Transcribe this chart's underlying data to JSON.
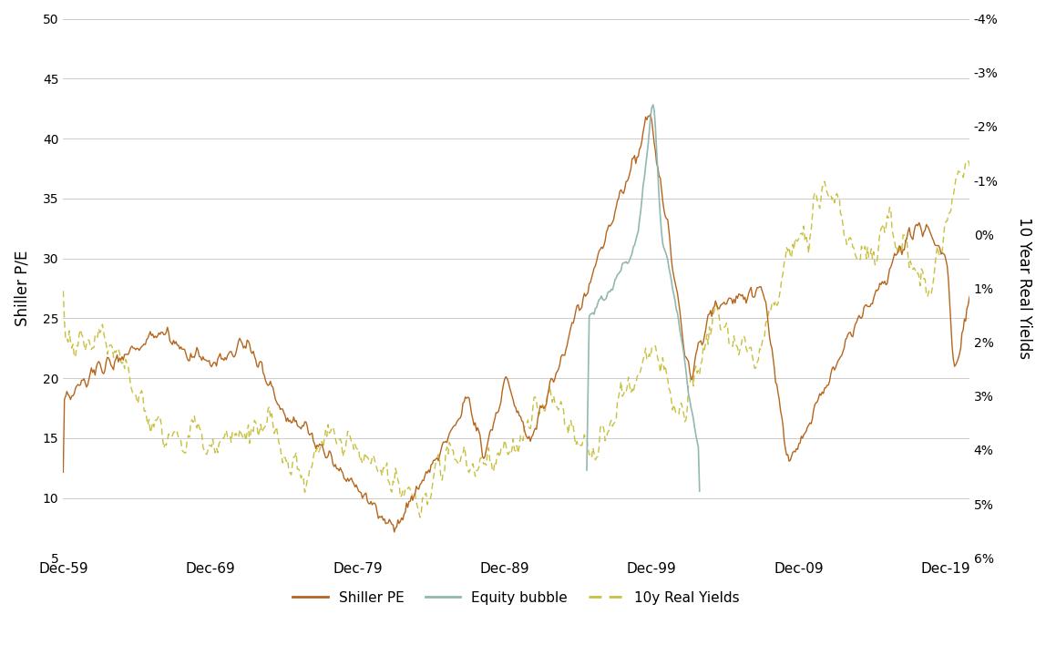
{
  "ylabel_left": "Shiller P/E",
  "ylabel_right": "10 Year Real Yields",
  "ylim_left": [
    5,
    50
  ],
  "yticks_left": [
    5,
    10,
    15,
    20,
    25,
    30,
    35,
    40,
    45,
    50
  ],
  "yticks_right_pct": [
    6,
    5,
    4,
    3,
    2,
    1,
    0,
    -1,
    -2,
    -3,
    -4
  ],
  "xtick_labels": [
    "Dec-59",
    "Dec-69",
    "Dec-79",
    "Dec-89",
    "Dec-99",
    "Dec-09",
    "Dec-19"
  ],
  "color_shiller": "#B5651D",
  "color_bubble": "#92B8B1",
  "color_yields": "#C8C040",
  "background": "#FFFFFF",
  "grid_color": "#CCCCCC"
}
